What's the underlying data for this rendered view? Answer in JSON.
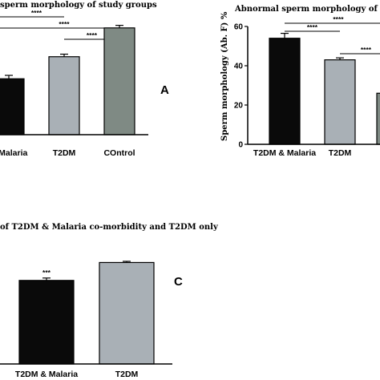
{
  "chart_data": [
    {
      "id": "A",
      "type": "bar",
      "panel_label": "A",
      "title": "sperm morphology of study groups",
      "xlabel": "",
      "ylabel": "",
      "categories": [
        "& Malaria",
        "T2DM",
        "COntrol"
      ],
      "values": [
        33,
        46,
        63
      ],
      "errors": [
        2,
        1.5,
        1.5
      ],
      "colors": [
        "#0a0a0a",
        "#a9b0b6",
        "#7f8a84"
      ],
      "ylim": [
        0,
        70
      ],
      "significance": [
        {
          "from": 0,
          "to": 2,
          "label": "****"
        },
        {
          "from": 1,
          "to": 2,
          "label": "****"
        },
        {
          "from": 0,
          "to": 1,
          "label": "****"
        }
      ]
    },
    {
      "id": "B",
      "type": "bar",
      "title": "Abnormal sperm morphology of",
      "xlabel": "",
      "ylabel": "Sperm morphology (Ab. F) %",
      "categories": [
        "T2DM & Malaria",
        "T2DM"
      ],
      "values": [
        54,
        43
      ],
      "errors": [
        2.5,
        1
      ],
      "colors": [
        "#0a0a0a",
        "#a9b0b6"
      ],
      "third_bar_value": 26,
      "ylim": [
        0,
        60
      ],
      "yticks": [
        0,
        20,
        40,
        60
      ],
      "significance": [
        {
          "from": 0,
          "to": 2,
          "label": "****"
        },
        {
          "from": 0,
          "to": 1,
          "label": "****"
        },
        {
          "from": 1,
          "to": 2,
          "label": "****"
        }
      ]
    },
    {
      "id": "C",
      "type": "bar",
      "panel_label": "C",
      "title": "of T2DM & Malaria co-morbidity and T2DM only",
      "xlabel": "",
      "ylabel": "",
      "categories": [
        "T2DM & Malaria",
        "T2DM"
      ],
      "values": [
        70,
        85
      ],
      "errors": [
        2,
        1
      ],
      "colors": [
        "#0a0a0a",
        "#a9b0b6"
      ],
      "ylim": [
        0,
        90
      ],
      "significance": [
        {
          "bar": 0,
          "label": "***"
        }
      ]
    }
  ]
}
